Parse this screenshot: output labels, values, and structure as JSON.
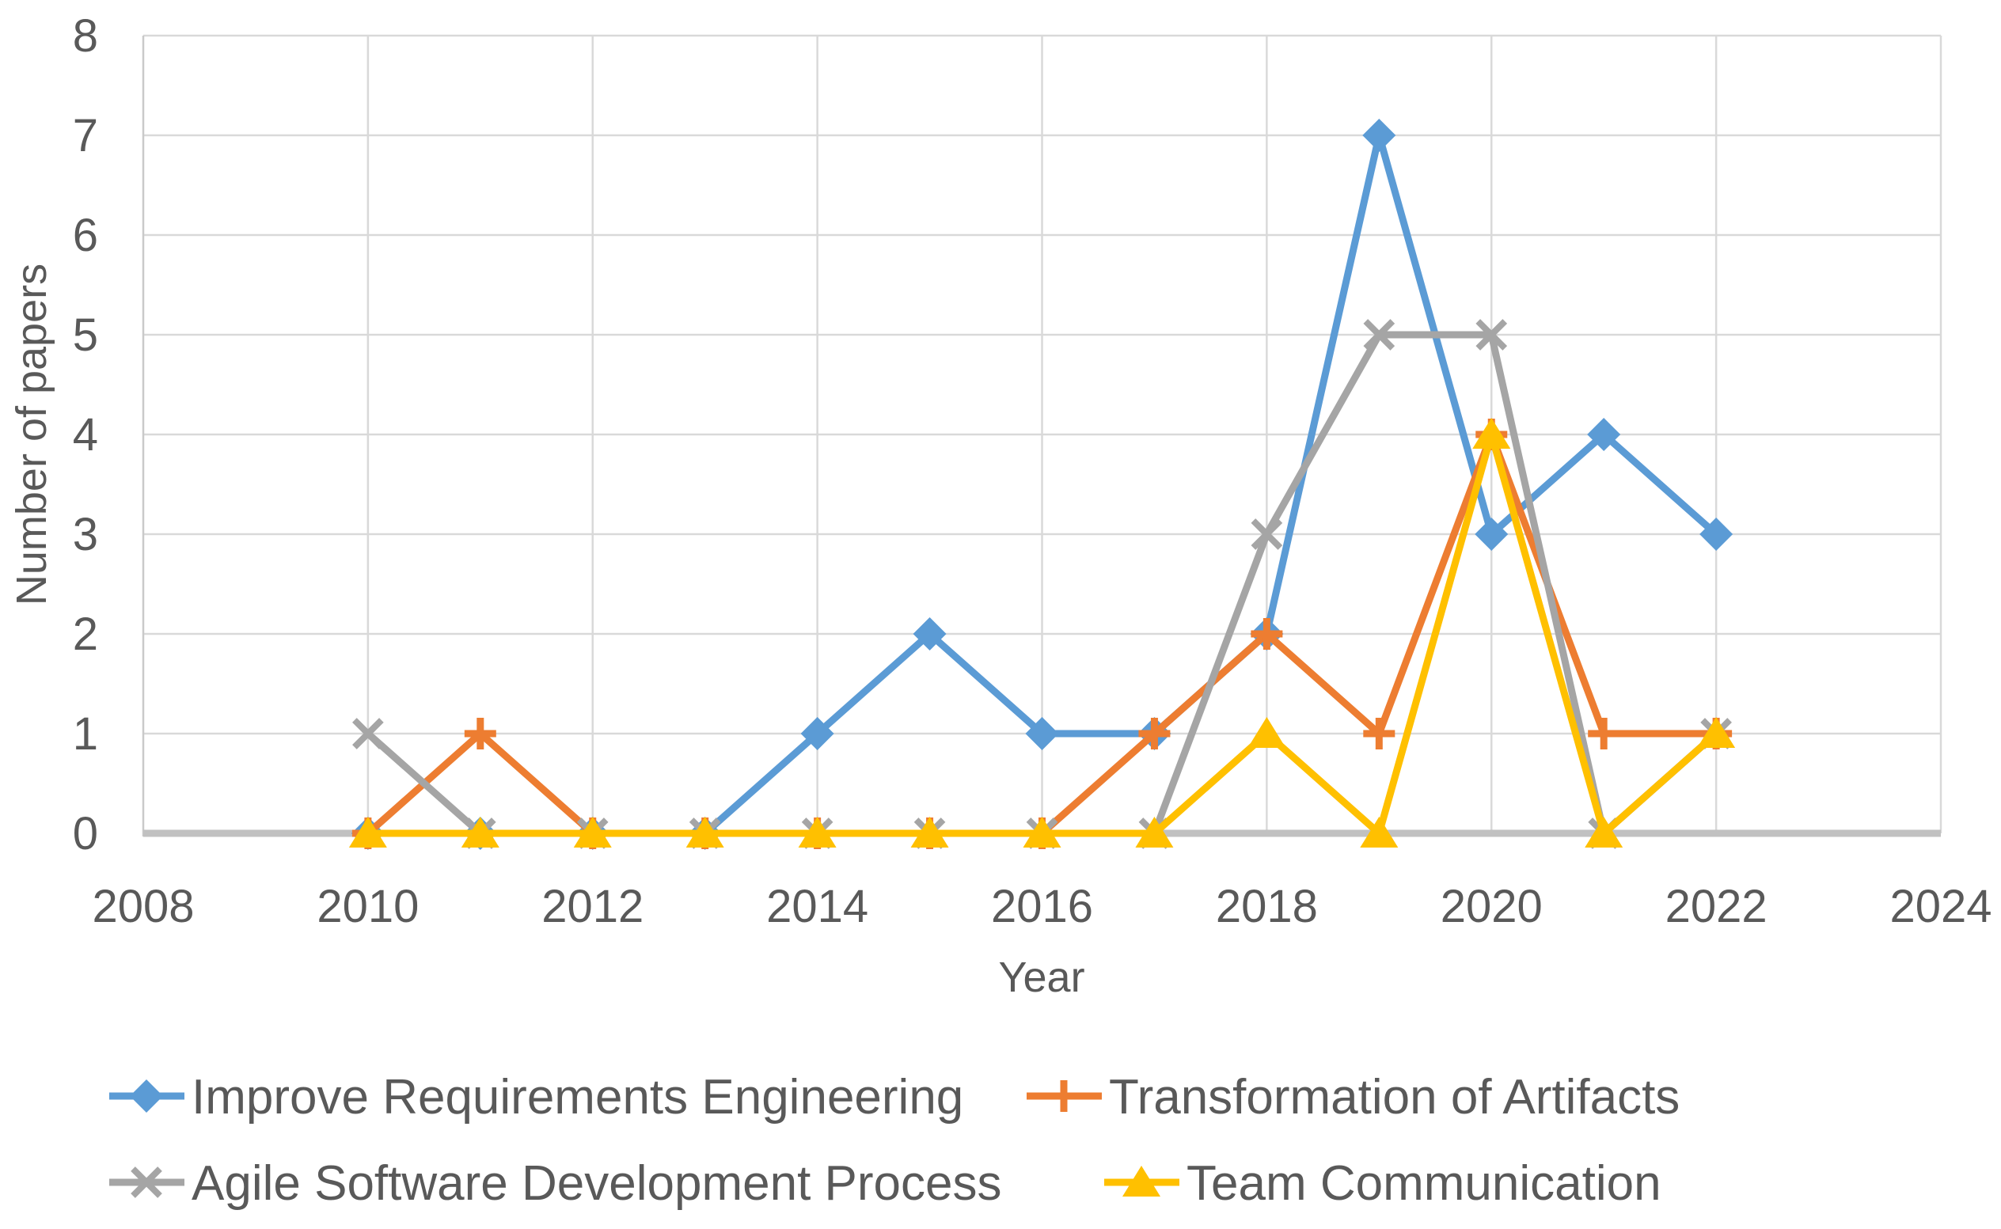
{
  "chart_data": {
    "type": "line",
    "title": "",
    "xlabel": "Year",
    "ylabel": "Number of papers",
    "x": [
      2010,
      2011,
      2012,
      2013,
      2014,
      2015,
      2016,
      2017,
      2018,
      2019,
      2020,
      2021,
      2022
    ],
    "series": [
      {
        "name": "Improve Requirements Engineering",
        "color": "#5B9BD5",
        "marker": "diamond",
        "values": [
          0,
          0,
          0,
          0,
          1,
          2,
          1,
          1,
          2,
          7,
          3,
          4,
          3
        ]
      },
      {
        "name": "Transformation of Artifacts",
        "color": "#ED7D31",
        "marker": "plus",
        "values": [
          0,
          1,
          0,
          0,
          0,
          0,
          0,
          1,
          2,
          1,
          4,
          1,
          1
        ]
      },
      {
        "name": "Agile Software Development Process",
        "color": "#A5A5A5",
        "marker": "x",
        "values": [
          1,
          0,
          0,
          0,
          0,
          0,
          0,
          0,
          3,
          5,
          5,
          0,
          1
        ]
      },
      {
        "name": "Team Communication",
        "color": "#FFC000",
        "marker": "triangle",
        "values": [
          0,
          0,
          0,
          0,
          0,
          0,
          0,
          0,
          1,
          0,
          4,
          0,
          1
        ]
      }
    ],
    "xlim": [
      2008,
      2024
    ],
    "ylim": [
      0,
      8
    ],
    "x_ticks": [
      "2008",
      "2010",
      "2012",
      "2014",
      "2016",
      "2018",
      "2020",
      "2022",
      "2024"
    ],
    "y_ticks": [
      "0",
      "1",
      "2",
      "3",
      "4",
      "5",
      "6",
      "7",
      "8"
    ],
    "grid": true,
    "legend_position": "bottom",
    "legend_rows": [
      [
        "Improve Requirements Engineering",
        "Transformation of Artifacts"
      ],
      [
        "Agile Software Development Process",
        "Team Communication"
      ]
    ],
    "colors": {
      "text": "#595959",
      "gridline": "#D9D9D9",
      "axis_line": "#C1C1C1"
    }
  }
}
